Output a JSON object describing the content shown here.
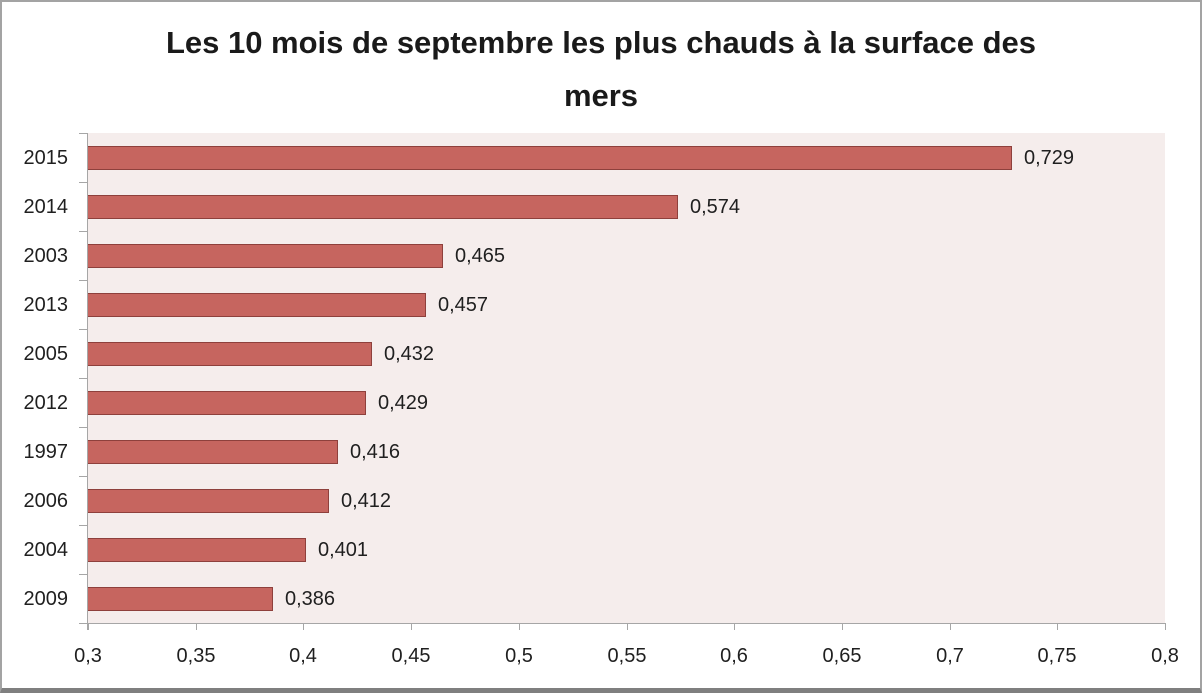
{
  "chart_data": {
    "type": "bar",
    "orientation": "horizontal",
    "title": "Les 10 mois de septembre les plus chauds à la surface des mers",
    "title_lines": [
      "Les 10 mois de septembre les plus chauds à la surface des",
      "mers"
    ],
    "categories": [
      "2015",
      "2014",
      "2003",
      "2013",
      "2005",
      "2012",
      "1997",
      "2006",
      "2004",
      "2009"
    ],
    "values": [
      0.729,
      0.574,
      0.465,
      0.457,
      0.432,
      0.429,
      0.416,
      0.412,
      0.401,
      0.386
    ],
    "value_labels": [
      "0,729",
      "0,574",
      "0,465",
      "0,457",
      "0,432",
      "0,429",
      "0,416",
      "0,412",
      "0,401",
      "0,386"
    ],
    "xlabel": "",
    "ylabel": "",
    "xlim": [
      0.3,
      0.8
    ],
    "x_ticks": [
      0.3,
      0.35,
      0.4,
      0.45,
      0.5,
      0.55,
      0.6,
      0.65,
      0.7,
      0.75,
      0.8
    ],
    "x_tick_labels": [
      "0,3",
      "0,35",
      "0,4",
      "0,45",
      "0,5",
      "0,55",
      "0,6",
      "0,65",
      "0,7",
      "0,75",
      "0,8"
    ],
    "grid": false,
    "legend": false
  },
  "colors": {
    "bar_fill": "#C6655F",
    "bar_border": "#8E403C",
    "plot_background": "#F5EDEC",
    "axis_line": "#A6A6A6",
    "label_text": "#1F1F1F",
    "title_text": "#1A1A1A",
    "window_border": "#A3A3A3",
    "window_bottom_edge": "#7F7F7F"
  }
}
